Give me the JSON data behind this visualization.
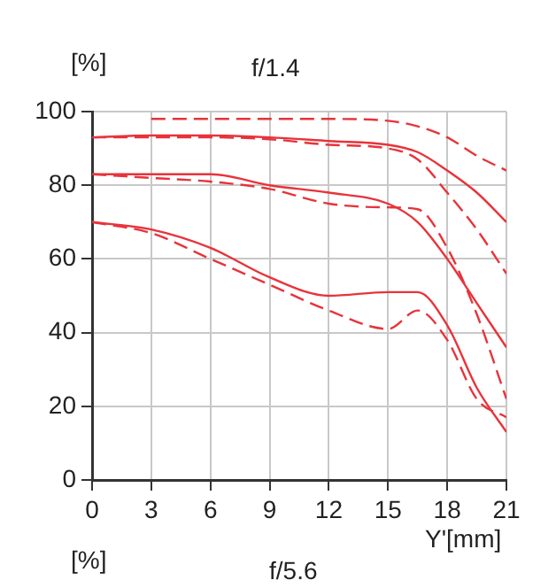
{
  "chart_data": {
    "type": "line",
    "title": "f/1.4",
    "xlabel": "Y'[mm]",
    "ylabel": "[%]",
    "annotations": [
      "[%]",
      "f/5.6"
    ],
    "x": [
      0,
      3,
      6,
      9,
      12,
      15,
      16.5,
      18,
      19.5,
      21
    ],
    "xlim": [
      0,
      21
    ],
    "xticks": [
      0,
      3,
      6,
      9,
      12,
      15,
      18,
      21
    ],
    "ylim": [
      0,
      100
    ],
    "yticks": [
      0,
      20,
      40,
      60,
      80,
      100
    ],
    "grid": true,
    "legend": false,
    "marker": "none",
    "series": [
      {
        "color": "#e8333a",
        "line_style": "dashed",
        "values": [
          null,
          98,
          98,
          98,
          98,
          97.5,
          96,
          93,
          88,
          84
        ]
      },
      {
        "color": "#e8333a",
        "line_style": "solid",
        "values": [
          93,
          93.5,
          93.5,
          93,
          92,
          91,
          89,
          84,
          78,
          70
        ]
      },
      {
        "color": "#e8333a",
        "line_style": "dashed",
        "values": [
          93,
          93,
          93,
          92.5,
          91,
          90,
          87,
          78,
          68,
          56
        ]
      },
      {
        "color": "#e8333a",
        "line_style": "solid",
        "values": [
          83,
          83,
          83,
          80,
          78,
          75,
          70,
          60,
          48,
          36
        ]
      },
      {
        "color": "#e8333a",
        "line_style": "dashed",
        "values": [
          83,
          82,
          81,
          79,
          75,
          74,
          73.5,
          63,
          45,
          22
        ]
      },
      {
        "color": "#e8333a",
        "line_style": "solid",
        "values": [
          70,
          68,
          63,
          55,
          50,
          51,
          51,
          42,
          25,
          13
        ]
      },
      {
        "color": "#e8333a",
        "line_style": "dashed",
        "values": [
          70,
          67,
          60,
          53,
          46,
          41,
          46,
          38,
          22,
          17
        ]
      }
    ]
  }
}
